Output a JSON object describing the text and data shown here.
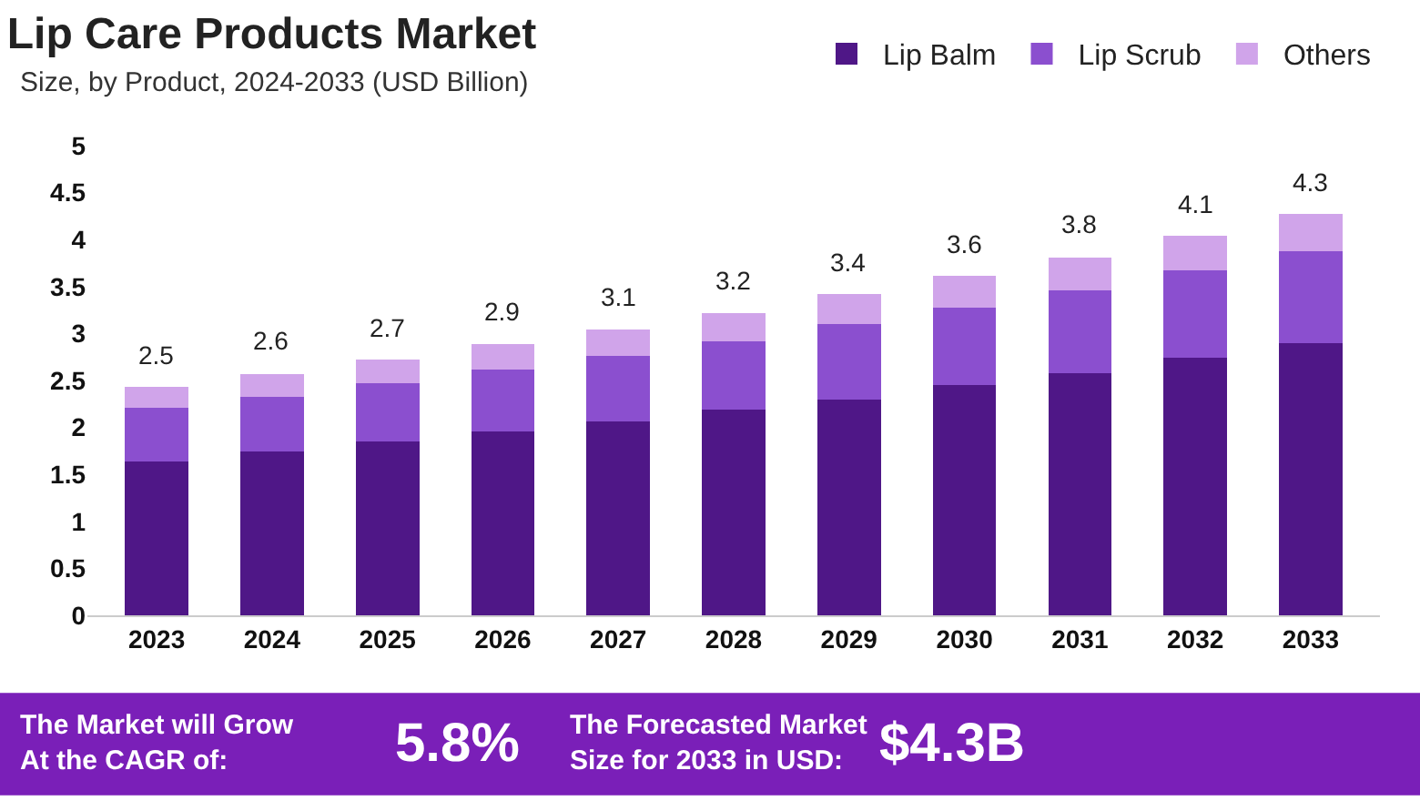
{
  "chart_data": {
    "type": "bar",
    "title": "Lip Care Products Market",
    "subtitle": "Size, by Product, 2024-2033 (USD Billion)",
    "categories": [
      "2023",
      "2024",
      "2025",
      "2026",
      "2027",
      "2028",
      "2029",
      "2030",
      "2031",
      "2032",
      "2033"
    ],
    "series": [
      {
        "name": "Lip Balm",
        "color": "#4f1787",
        "values": [
          1.64,
          1.74,
          1.85,
          1.96,
          2.06,
          2.19,
          2.3,
          2.45,
          2.58,
          2.74,
          2.9
        ]
      },
      {
        "name": "Lip Scrub",
        "color": "#8b4fcf",
        "values": [
          0.57,
          0.59,
          0.62,
          0.66,
          0.7,
          0.73,
          0.8,
          0.83,
          0.88,
          0.93,
          0.98
        ]
      },
      {
        "name": "Others",
        "color": "#d0a4ea",
        "values": [
          0.22,
          0.24,
          0.25,
          0.27,
          0.28,
          0.3,
          0.32,
          0.33,
          0.35,
          0.37,
          0.39
        ]
      }
    ],
    "stacked": true,
    "totals": [
      "2.5",
      "2.6",
      "2.7",
      "2.9",
      "3.1",
      "3.2",
      "3.4",
      "3.6",
      "3.8",
      "4.1",
      "4.3"
    ],
    "ylim": [
      0,
      5
    ],
    "yticks": [
      0,
      0.5,
      1,
      1.5,
      2,
      2.5,
      3,
      3.5,
      4,
      4.5,
      5
    ],
    "grid": false,
    "legend": "top right",
    "annotations": [
      "The Market will Grow At the CAGR of:",
      "5.8%",
      "The Forecasted Market Size for 2033 in USD:",
      "$4.3B"
    ]
  }
}
